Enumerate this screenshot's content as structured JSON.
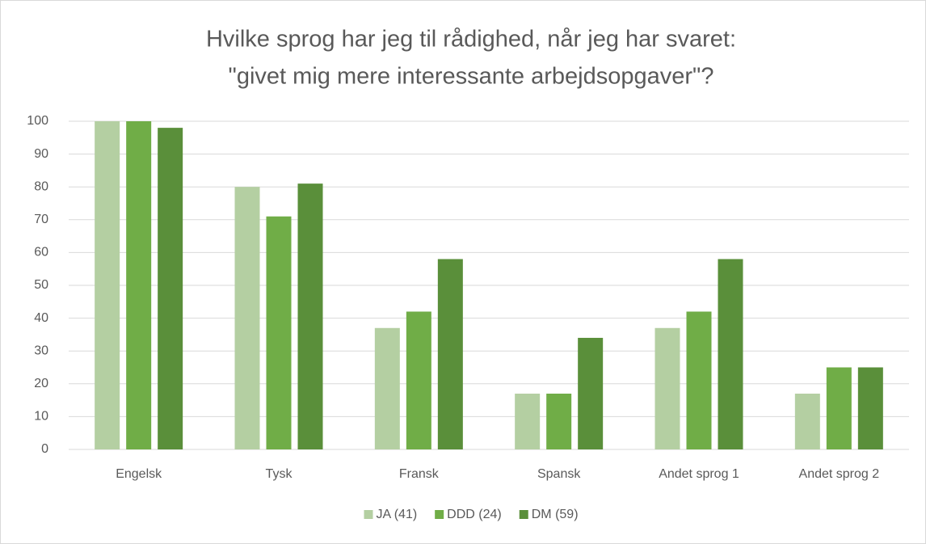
{
  "chart_data": {
    "type": "bar",
    "title": [
      "Hvilke sprog har jeg til rådighed, når jeg har svaret:",
      "\"givet mig mere interessante arbejdsopgaver\"?"
    ],
    "categories": [
      "Engelsk",
      "Tysk",
      "Fransk",
      "Spansk",
      "Andet sprog 1",
      "Andet sprog 2"
    ],
    "series": [
      {
        "name": "JA (41)",
        "color": "#b4cfa2",
        "values": [
          100,
          80,
          37,
          17,
          37,
          17
        ]
      },
      {
        "name": "DDD (24)",
        "color": "#70ad47",
        "values": [
          100,
          71,
          42,
          17,
          42,
          25
        ]
      },
      {
        "name": "DM (59)",
        "color": "#5a8f3a",
        "values": [
          98,
          81,
          58,
          34,
          58,
          25
        ]
      }
    ],
    "ylim": [
      0,
      100
    ],
    "yticks": [
      0,
      10,
      20,
      30,
      40,
      50,
      60,
      70,
      80,
      90,
      100
    ],
    "grid": true,
    "legend": "bottom"
  }
}
